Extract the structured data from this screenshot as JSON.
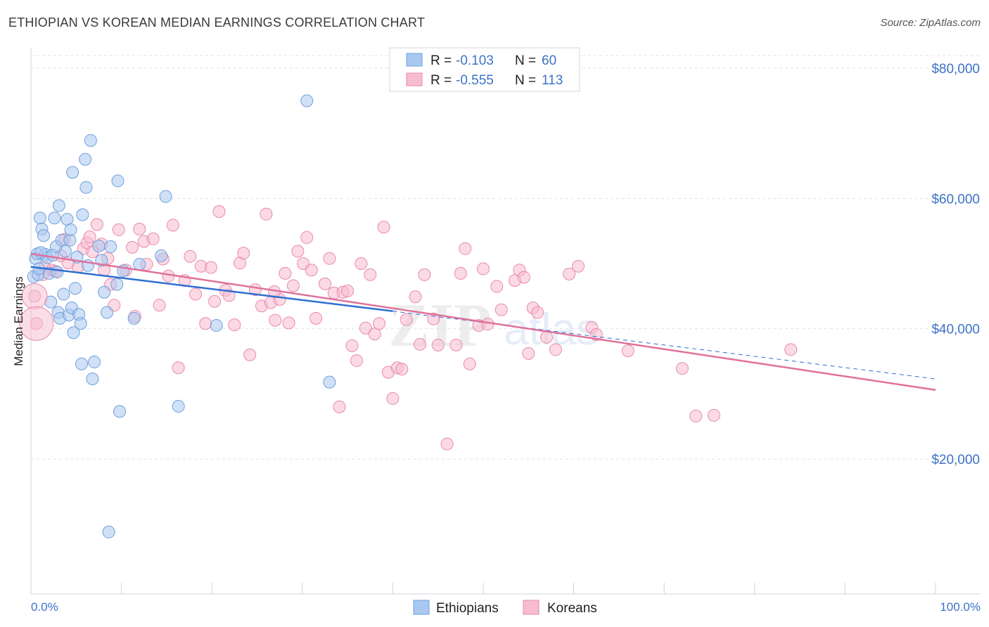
{
  "header": {
    "title": "ETHIOPIAN VS KOREAN MEDIAN EARNINGS CORRELATION CHART",
    "source": "Source: ZipAtlas.com"
  },
  "watermark": {
    "zip": "ZIP",
    "atlas": "atlas"
  },
  "legend_box": {
    "rows": [
      {
        "r_label": "R =",
        "r_value": "-0.103",
        "n_label": "N =",
        "n_value": "60",
        "color": "#a9c8f0",
        "stroke": "#6f9fdc"
      },
      {
        "r_label": "R =",
        "r_value": "-0.555",
        "n_label": "N =",
        "n_value": "113",
        "color": "#f7bcd0",
        "stroke": "#e88aaa"
      }
    ]
  },
  "chart_data": {
    "type": "scatter",
    "title": "ETHIOPIAN VS KOREAN MEDIAN EARNINGS CORRELATION CHART",
    "xlabel": "",
    "ylabel": "Median Earnings",
    "xlim": [
      0,
      100
    ],
    "ylim": [
      0,
      84000
    ],
    "x_tick_labels": [
      "0.0%",
      "100.0%"
    ],
    "y_ticks": [
      20000,
      40000,
      60000,
      80000
    ],
    "y_tick_labels": [
      "$20,000",
      "$40,000",
      "$60,000",
      "$80,000"
    ],
    "grid": true,
    "legend_position": "bottom-center",
    "colors": {
      "ethiopians": "#6f9fdc",
      "koreans": "#e88aaa",
      "eth_line": "#2d6fd1",
      "kor_line": "#e0709a",
      "axis_label": "#3d72c8"
    },
    "series": [
      {
        "name": "Ethiopians",
        "trend": {
          "x": [
            0,
            40
          ],
          "y": [
            49500,
            42700
          ],
          "dashed_to": [
            100,
            32300
          ]
        },
        "points": [
          [
            0.3,
            48000
          ],
          [
            0.5,
            50800
          ],
          [
            0.7,
            51500
          ],
          [
            0.8,
            48300
          ],
          [
            1.0,
            57000
          ],
          [
            1.2,
            55300
          ],
          [
            1.4,
            54300
          ],
          [
            1.6,
            51400
          ],
          [
            1.8,
            50900
          ],
          [
            2.0,
            48500
          ],
          [
            2.2,
            44100
          ],
          [
            2.4,
            51300
          ],
          [
            2.6,
            57000
          ],
          [
            2.8,
            52600
          ],
          [
            3.0,
            42500
          ],
          [
            3.1,
            58900
          ],
          [
            3.2,
            41600
          ],
          [
            3.4,
            53600
          ],
          [
            3.6,
            45300
          ],
          [
            3.8,
            51900
          ],
          [
            4.0,
            56800
          ],
          [
            4.2,
            42100
          ],
          [
            4.3,
            53600
          ],
          [
            4.4,
            55200
          ],
          [
            4.5,
            43200
          ],
          [
            4.6,
            64000
          ],
          [
            4.7,
            39400
          ],
          [
            4.9,
            46200
          ],
          [
            5.1,
            51000
          ],
          [
            5.3,
            42200
          ],
          [
            5.5,
            40800
          ],
          [
            5.6,
            34600
          ],
          [
            5.7,
            57500
          ],
          [
            6.0,
            66000
          ],
          [
            6.1,
            61700
          ],
          [
            6.3,
            49700
          ],
          [
            6.6,
            68900
          ],
          [
            6.8,
            32300
          ],
          [
            7.0,
            34900
          ],
          [
            7.5,
            52700
          ],
          [
            7.8,
            50500
          ],
          [
            8.1,
            45600
          ],
          [
            8.4,
            42500
          ],
          [
            8.6,
            8800
          ],
          [
            8.8,
            52600
          ],
          [
            9.5,
            46800
          ],
          [
            9.6,
            62700
          ],
          [
            9.8,
            27300
          ],
          [
            10.2,
            48900
          ],
          [
            11.4,
            41600
          ],
          [
            12.0,
            49900
          ],
          [
            14.4,
            51200
          ],
          [
            14.9,
            60300
          ],
          [
            16.3,
            28100
          ],
          [
            20.5,
            40500
          ],
          [
            30.5,
            75000
          ],
          [
            33.0,
            31800
          ],
          [
            0.9,
            49200
          ],
          [
            1.1,
            51700
          ],
          [
            2.9,
            48700
          ]
        ]
      },
      {
        "name": "Koreans",
        "trend": {
          "x": [
            0,
            100
          ],
          "y": [
            51500,
            30600
          ]
        },
        "points": [
          [
            0.4,
            45000
          ],
          [
            0.6,
            40800
          ],
          [
            1.5,
            49400
          ],
          [
            2.3,
            49000
          ],
          [
            3.3,
            51200
          ],
          [
            5.2,
            49500
          ],
          [
            5.8,
            52300
          ],
          [
            6.2,
            53200
          ],
          [
            6.5,
            54100
          ],
          [
            6.8,
            51800
          ],
          [
            7.3,
            56000
          ],
          [
            7.8,
            53000
          ],
          [
            8.1,
            49000
          ],
          [
            8.5,
            50800
          ],
          [
            8.8,
            46800
          ],
          [
            9.2,
            43600
          ],
          [
            9.7,
            55200
          ],
          [
            10.5,
            49000
          ],
          [
            11.2,
            52500
          ],
          [
            11.5,
            41900
          ],
          [
            12.0,
            55300
          ],
          [
            12.5,
            53400
          ],
          [
            12.8,
            49900
          ],
          [
            13.5,
            53800
          ],
          [
            14.2,
            43600
          ],
          [
            14.6,
            50700
          ],
          [
            15.2,
            48100
          ],
          [
            15.7,
            55900
          ],
          [
            16.3,
            34000
          ],
          [
            17.0,
            47400
          ],
          [
            17.6,
            51100
          ],
          [
            18.2,
            45300
          ],
          [
            18.8,
            49600
          ],
          [
            19.3,
            40800
          ],
          [
            19.9,
            49400
          ],
          [
            20.3,
            44200
          ],
          [
            20.8,
            58000
          ],
          [
            21.5,
            45900
          ],
          [
            21.9,
            45100
          ],
          [
            22.5,
            40600
          ],
          [
            23.1,
            50100
          ],
          [
            23.5,
            51600
          ],
          [
            24.2,
            36000
          ],
          [
            24.8,
            46000
          ],
          [
            25.5,
            43500
          ],
          [
            26.0,
            57600
          ],
          [
            26.5,
            44000
          ],
          [
            27.0,
            41300
          ],
          [
            27.5,
            44500
          ],
          [
            28.1,
            48500
          ],
          [
            28.5,
            40900
          ],
          [
            29.0,
            46600
          ],
          [
            29.5,
            51900
          ],
          [
            30.1,
            50000
          ],
          [
            30.5,
            54000
          ],
          [
            31.0,
            49000
          ],
          [
            31.5,
            41600
          ],
          [
            32.5,
            46900
          ],
          [
            33.0,
            50800
          ],
          [
            33.5,
            45500
          ],
          [
            34.1,
            28000
          ],
          [
            34.5,
            45600
          ],
          [
            35.0,
            45800
          ],
          [
            35.5,
            37400
          ],
          [
            36.0,
            35100
          ],
          [
            36.5,
            50000
          ],
          [
            37.0,
            40100
          ],
          [
            37.5,
            48300
          ],
          [
            38.0,
            39200
          ],
          [
            38.5,
            40800
          ],
          [
            39.0,
            55600
          ],
          [
            39.5,
            33300
          ],
          [
            40.0,
            29300
          ],
          [
            40.5,
            34000
          ],
          [
            41.0,
            33800
          ],
          [
            41.5,
            41400
          ],
          [
            42.5,
            44900
          ],
          [
            43.0,
            37600
          ],
          [
            43.5,
            48300
          ],
          [
            44.5,
            41500
          ],
          [
            45.0,
            37500
          ],
          [
            46.0,
            22300
          ],
          [
            47.0,
            37500
          ],
          [
            47.5,
            48500
          ],
          [
            48.0,
            52300
          ],
          [
            48.5,
            34600
          ],
          [
            49.5,
            40500
          ],
          [
            50.0,
            49200
          ],
          [
            50.5,
            40700
          ],
          [
            51.5,
            46500
          ],
          [
            52.0,
            42900
          ],
          [
            53.5,
            47400
          ],
          [
            54.0,
            49000
          ],
          [
            54.5,
            47900
          ],
          [
            55.0,
            36200
          ],
          [
            55.5,
            43200
          ],
          [
            56.0,
            42500
          ],
          [
            57.0,
            38700
          ],
          [
            58.0,
            36800
          ],
          [
            59.5,
            48400
          ],
          [
            60.5,
            49600
          ],
          [
            62.0,
            40200
          ],
          [
            62.5,
            39100
          ],
          [
            66.0,
            36600
          ],
          [
            72.0,
            33900
          ],
          [
            73.5,
            26600
          ],
          [
            75.5,
            26700
          ],
          [
            84.0,
            36800
          ],
          [
            1.3,
            48300
          ],
          [
            2.7,
            48800
          ],
          [
            4.1,
            50100
          ],
          [
            3.7,
            53700
          ],
          [
            26.9,
            45700
          ]
        ]
      }
    ]
  },
  "bottom_legend": {
    "items": [
      {
        "label": "Ethiopians",
        "color": "#a9c8f0",
        "stroke": "#6f9fdc"
      },
      {
        "label": "Koreans",
        "color": "#f7bcd0",
        "stroke": "#e88aaa"
      }
    ]
  }
}
